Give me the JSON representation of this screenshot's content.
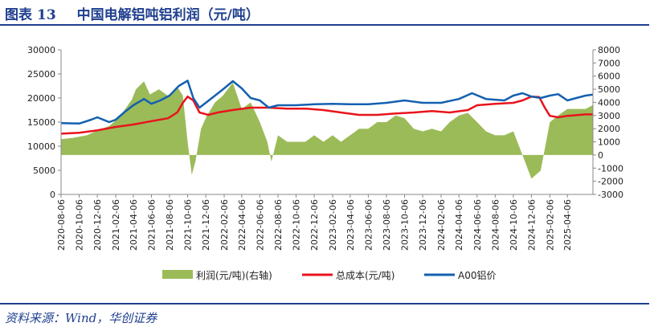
{
  "header": {
    "label": "图表",
    "number": "13",
    "title": "中国电解铝吨铝利润（元/吨）"
  },
  "source": "资料来源：Wind，华创证券",
  "colors": {
    "accent": "#1f3f8f",
    "profit": "#9bbb59",
    "cost": "#e8141c",
    "price": "#1460b0"
  },
  "chart_data": {
    "type": "line",
    "x_ticks": [
      "2020-08-06",
      "2020-10-06",
      "2020-12-06",
      "2021-02-06",
      "2021-04-06",
      "2021-06-06",
      "2021-08-06",
      "2021-10-06",
      "2021-12-06",
      "2022-02-06",
      "2022-04-06",
      "2022-06-06",
      "2022-08-06",
      "2022-10-06",
      "2022-12-06",
      "2023-02-06",
      "2023-04-06",
      "2023-06-06",
      "2023-08-06",
      "2023-10-06",
      "2023-12-06",
      "2024-02-06",
      "2024-04-06",
      "2024-06-06",
      "2024-08-06",
      "2024-10-06",
      "2024-12-06",
      "2025-02-06",
      "2025-04-06"
    ],
    "y_left": {
      "ticks": [
        0,
        5000,
        10000,
        15000,
        20000,
        25000,
        30000
      ],
      "range": [
        0,
        30000
      ]
    },
    "y_right": {
      "ticks": [
        -3000,
        -2000,
        -1000,
        0,
        1000,
        2000,
        3000,
        4000,
        5000,
        6000,
        7000,
        8000
      ],
      "range": [
        -3000,
        8000
      ]
    },
    "series": [
      {
        "name": "利润(元/吨)(右轴)",
        "type": "area",
        "axis": "right",
        "x": [
          "2020-08-06",
          "2020-09-15",
          "2020-11-01",
          "2020-12-10",
          "2021-01-15",
          "2021-02-15",
          "2021-03-10",
          "2021-04-01",
          "2021-04-15",
          "2021-05-12",
          "2021-06-01",
          "2021-07-01",
          "2021-08-01",
          "2021-09-01",
          "2021-09-20",
          "2021-10-06",
          "2021-10-20",
          "2021-11-01",
          "2021-11-20",
          "2021-12-10",
          "2022-01-06",
          "2022-02-01",
          "2022-03-07",
          "2022-04-06",
          "2022-05-06",
          "2022-06-06",
          "2022-07-01",
          "2022-07-15",
          "2022-08-06",
          "2022-09-06",
          "2022-10-06",
          "2022-11-06",
          "2022-12-06",
          "2023-01-06",
          "2023-02-06",
          "2023-03-06",
          "2023-04-06",
          "2023-05-06",
          "2023-06-06",
          "2023-07-06",
          "2023-08-06",
          "2023-09-06",
          "2023-10-06",
          "2023-11-06",
          "2023-12-06",
          "2024-01-06",
          "2024-02-06",
          "2024-03-06",
          "2024-04-06",
          "2024-05-06",
          "2024-06-06",
          "2024-07-06",
          "2024-08-06",
          "2024-09-06",
          "2024-10-06",
          "2024-11-06",
          "2024-12-06",
          "2025-01-06",
          "2025-02-06",
          "2025-03-06",
          "2025-04-06",
          "2025-05-06",
          "2025-06-06",
          "2025-07-01"
        ],
        "values": [
          1200,
          1300,
          1500,
          1900,
          2200,
          2800,
          3500,
          4200,
          5000,
          5600,
          4600,
          5000,
          4500,
          5200,
          4500,
          1000,
          -1500,
          -500,
          2000,
          3000,
          4000,
          4500,
          5500,
          3500,
          4000,
          2500,
          1000,
          -500,
          1500,
          1000,
          1000,
          1000,
          1500,
          1000,
          1500,
          1000,
          1500,
          2000,
          2000,
          2500,
          2500,
          3000,
          2800,
          2000,
          1800,
          2000,
          1800,
          2500,
          3000,
          3200,
          2500,
          1800,
          1500,
          1500,
          1800,
          0,
          -1800,
          -1200,
          2500,
          3000,
          3500,
          3500,
          3500,
          3800
        ]
      },
      {
        "name": "总成本(元/吨)",
        "type": "line",
        "axis": "left",
        "x": [
          "2020-08-06",
          "2020-10-06",
          "2020-12-06",
          "2021-02-06",
          "2021-04-06",
          "2021-06-06",
          "2021-08-01",
          "2021-09-01",
          "2021-09-20",
          "2021-10-06",
          "2021-10-25",
          "2021-11-15",
          "2021-12-15",
          "2022-01-15",
          "2022-03-06",
          "2022-05-06",
          "2022-07-06",
          "2022-09-06",
          "2022-11-06",
          "2023-01-06",
          "2023-03-06",
          "2023-05-06",
          "2023-07-06",
          "2023-09-06",
          "2023-11-06",
          "2024-01-06",
          "2024-03-06",
          "2024-05-06",
          "2024-06-06",
          "2024-08-06",
          "2024-10-06",
          "2024-11-06",
          "2024-12-06",
          "2025-01-01",
          "2025-01-20",
          "2025-02-06",
          "2025-03-06",
          "2025-04-06",
          "2025-06-06",
          "2025-07-01"
        ],
        "values": [
          12600,
          12800,
          13300,
          14000,
          14500,
          15200,
          15800,
          17000,
          19000,
          20300,
          19500,
          17000,
          16500,
          17000,
          17500,
          18000,
          18000,
          17800,
          17800,
          17500,
          17000,
          16500,
          16500,
          16800,
          17000,
          17300,
          17000,
          17500,
          18500,
          18800,
          19000,
          19500,
          20300,
          20200,
          18000,
          16300,
          16000,
          16300,
          16600,
          16600
        ]
      },
      {
        "name": "A00铝价",
        "type": "line",
        "axis": "left",
        "x": [
          "2020-08-06",
          "2020-10-06",
          "2020-11-15",
          "2020-12-06",
          "2021-01-15",
          "2021-02-06",
          "2021-03-06",
          "2021-04-06",
          "2021-05-12",
          "2021-06-06",
          "2021-07-06",
          "2021-08-06",
          "2021-09-06",
          "2021-10-06",
          "2021-10-25",
          "2021-11-15",
          "2021-12-06",
          "2022-01-06",
          "2022-02-06",
          "2022-03-07",
          "2022-04-06",
          "2022-05-06",
          "2022-06-06",
          "2022-07-06",
          "2022-08-06",
          "2022-10-06",
          "2022-12-06",
          "2023-02-06",
          "2023-04-06",
          "2023-06-06",
          "2023-08-06",
          "2023-10-06",
          "2023-12-06",
          "2024-02-06",
          "2024-04-06",
          "2024-05-20",
          "2024-07-06",
          "2024-09-06",
          "2024-10-06",
          "2024-11-06",
          "2024-12-06",
          "2025-01-06",
          "2025-02-06",
          "2025-03-06",
          "2025-04-06",
          "2025-05-06",
          "2025-06-06",
          "2025-07-01"
        ],
        "values": [
          14800,
          14700,
          15500,
          16000,
          15000,
          15500,
          17000,
          18500,
          19800,
          18800,
          19500,
          20500,
          22500,
          23600,
          20000,
          18000,
          19000,
          20500,
          22000,
          23500,
          22000,
          20000,
          19500,
          18000,
          18500,
          18500,
          18700,
          18800,
          18700,
          18700,
          19000,
          19500,
          19000,
          19000,
          19800,
          21000,
          19800,
          19500,
          20500,
          21000,
          20300,
          20000,
          20500,
          20800,
          19500,
          20000,
          20500,
          20700
        ]
      }
    ]
  }
}
